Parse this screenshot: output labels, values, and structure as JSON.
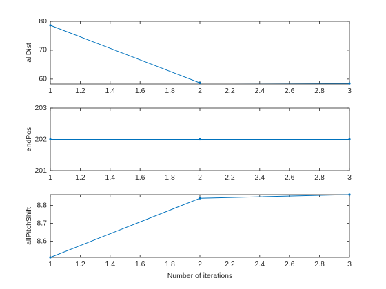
{
  "chart_data": [
    {
      "type": "line",
      "ylabel": "allDist",
      "x": [
        1,
        2,
        3
      ],
      "series": [
        {
          "color": "#0072bd",
          "values": [
            78.6,
            58.7,
            58.5
          ]
        }
      ],
      "xlim": [
        1,
        3
      ],
      "xticks": [
        1,
        1.2,
        1.4,
        1.6,
        1.8,
        2,
        2.2,
        2.4,
        2.6,
        2.8,
        3
      ],
      "ylim": [
        58.3,
        80
      ],
      "yticks": [
        60,
        70,
        80
      ]
    },
    {
      "type": "line",
      "ylabel": "endPos",
      "x": [
        1,
        2,
        3
      ],
      "series": [
        {
          "color": "#0072bd",
          "values": [
            202,
            202,
            202
          ]
        }
      ],
      "xlim": [
        1,
        3
      ],
      "xticks": [
        1,
        1.2,
        1.4,
        1.6,
        1.8,
        2,
        2.2,
        2.4,
        2.6,
        2.8,
        3
      ],
      "ylim": [
        201,
        203
      ],
      "yticks": [
        201,
        202,
        203
      ]
    },
    {
      "type": "line",
      "ylabel": "allPitchShift",
      "xlabel": "Number of iterations",
      "x": [
        1,
        2,
        3
      ],
      "series": [
        {
          "color": "#0072bd",
          "values": [
            8.51,
            8.84,
            8.86
          ]
        }
      ],
      "xlim": [
        1,
        3
      ],
      "xticks": [
        1,
        1.2,
        1.4,
        1.6,
        1.8,
        2,
        2.2,
        2.4,
        2.6,
        2.8,
        3
      ],
      "ylim": [
        8.51,
        8.86
      ],
      "yticks": [
        8.6,
        8.7,
        8.8
      ]
    }
  ]
}
